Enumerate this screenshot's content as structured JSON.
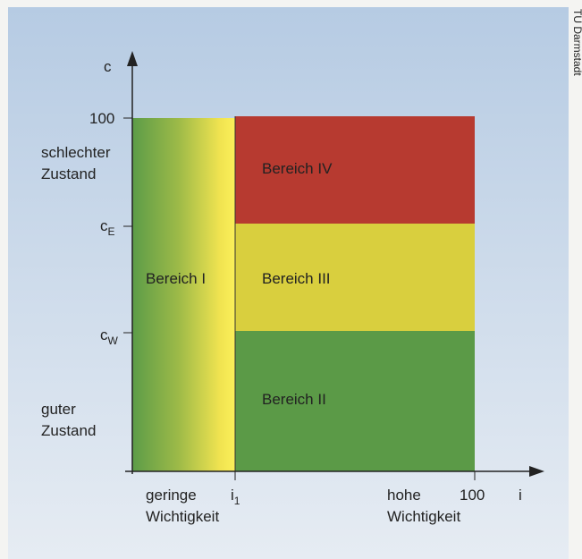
{
  "credit": "TU Darmstadt",
  "y_axis": {
    "symbol": "c",
    "top_label": "100",
    "tick_e": {
      "symbol": "c",
      "subscript": "E"
    },
    "tick_w": {
      "symbol": "c",
      "subscript": "W"
    },
    "upper_note": [
      "schlechter",
      "Zustand"
    ],
    "lower_note": [
      "guter",
      "Zustand"
    ]
  },
  "x_axis": {
    "symbol": "i",
    "end_label": "100",
    "tick_1": {
      "symbol": "i",
      "subscript": "1"
    },
    "left_note": [
      "geringe",
      "Wichtigkeit"
    ],
    "right_note": [
      "hohe",
      "Wichtigkeit"
    ]
  },
  "regions": [
    "Bereich I",
    "Bereich II",
    "Bereich III",
    "Bereich IV"
  ]
}
